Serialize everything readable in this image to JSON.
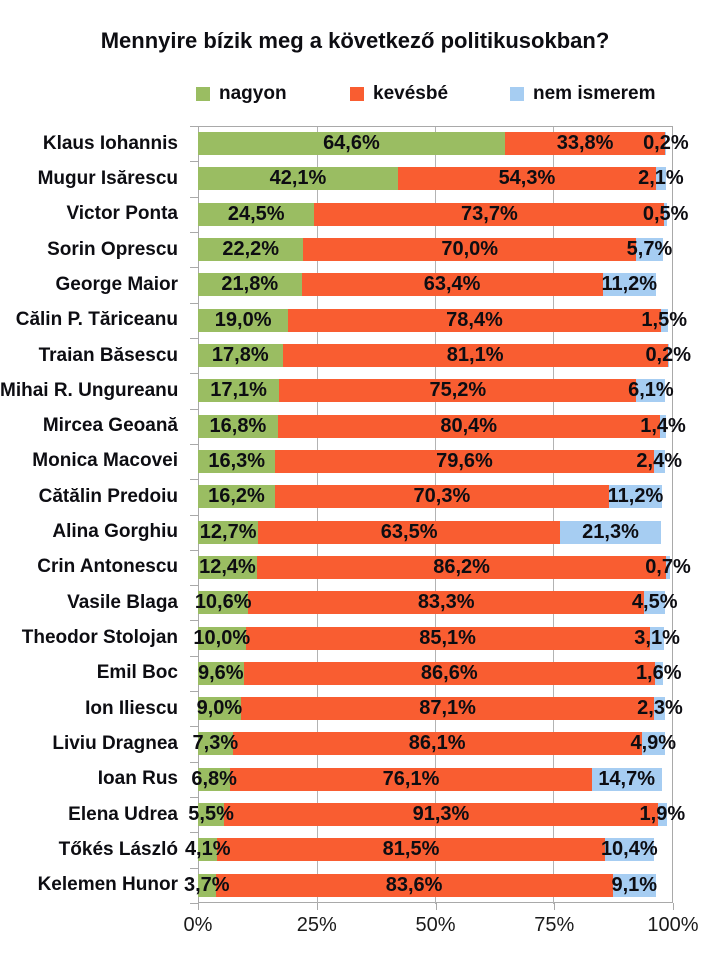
{
  "title": "Mennyire bízik meg a következő politikusokban?",
  "legend": [
    {
      "label": "nagyon",
      "color": "#9ABD62"
    },
    {
      "label": "kevésbé",
      "color": "#F95D31"
    },
    {
      "label": "nem ismerem",
      "color": "#A6CDF2"
    }
  ],
  "colors": {
    "nagyon": "#9ABD62",
    "kevesbe": "#F95D31",
    "nem_ismerem": "#A6CDF2",
    "grid": "#A9A9A9"
  },
  "chart_data": {
    "type": "bar",
    "orientation": "horizontal",
    "stacked": true,
    "title": "Mennyire bízik meg a következő politikusokban?",
    "xlim": [
      0,
      100
    ],
    "x_ticks": [
      "0%",
      "25%",
      "50%",
      "75%",
      "100%"
    ],
    "x_tick_positions": [
      0,
      25,
      50,
      75,
      100
    ],
    "grid": true,
    "legend_position": "top",
    "value_label_format": "comma-decimal-percent",
    "categories": [
      "Klaus Iohannis",
      "Mugur Isărescu",
      "Victor Ponta",
      "Sorin Oprescu",
      "George Maior",
      "Călin P. Tăriceanu",
      "Traian Băsescu",
      "Mihai R. Ungureanu",
      "Mircea Geoană",
      "Monica Macovei",
      "Cătălin Predoiu",
      "Alina Gorghiu",
      "Crin Antonescu",
      "Vasile Blaga",
      "Theodor Stolojan",
      "Emil Boc",
      "Ion Iliescu",
      "Liviu Dragnea",
      "Ioan Rus",
      "Elena Udrea",
      "Tőkés László",
      "Kelemen Hunor"
    ],
    "series": [
      {
        "name": "nagyon",
        "color": "#9ABD62",
        "values": [
          64.6,
          42.1,
          24.5,
          22.2,
          21.8,
          19.0,
          17.8,
          17.1,
          16.8,
          16.3,
          16.2,
          12.7,
          12.4,
          10.6,
          10.0,
          9.6,
          9.0,
          7.3,
          6.8,
          5.5,
          4.1,
          3.7
        ]
      },
      {
        "name": "kevésbé",
        "color": "#F95D31",
        "values": [
          33.8,
          54.3,
          73.7,
          70.0,
          63.4,
          78.4,
          81.1,
          75.2,
          80.4,
          79.6,
          70.3,
          63.5,
          86.2,
          83.3,
          85.1,
          86.6,
          87.1,
          86.1,
          76.1,
          91.3,
          81.5,
          83.6
        ]
      },
      {
        "name": "nem ismerem",
        "color": "#A6CDF2",
        "values": [
          0.2,
          2.1,
          0.5,
          5.7,
          11.2,
          1.5,
          0.2,
          6.1,
          1.4,
          2.4,
          11.2,
          21.3,
          0.7,
          4.5,
          3.1,
          1.6,
          2.3,
          4.9,
          14.7,
          1.9,
          10.4,
          9.1
        ]
      }
    ]
  }
}
